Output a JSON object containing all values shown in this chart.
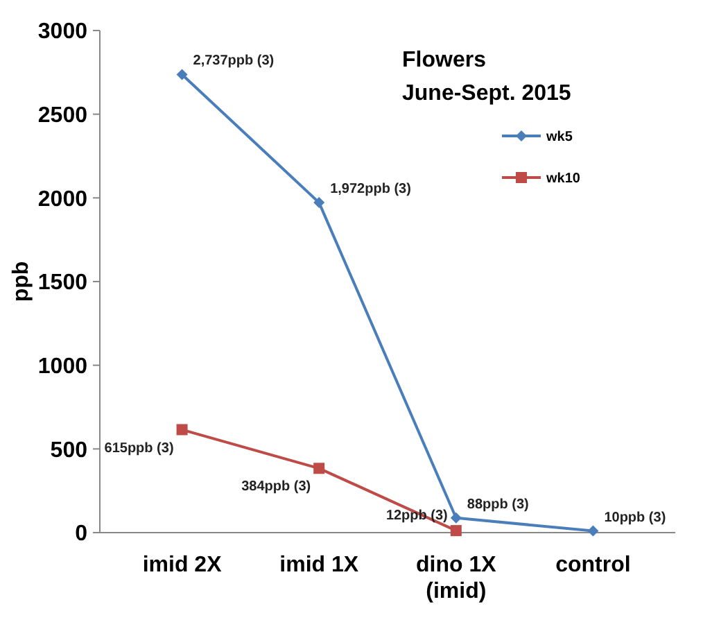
{
  "chart_data": {
    "type": "line",
    "title": "Flowers",
    "subtitle": "June-Sept. 2015",
    "ylabel": "ppb",
    "categories": [
      "imid 2X",
      "imid 1X",
      "dino 1X\n(imid)",
      "control"
    ],
    "ylim": [
      0,
      3000
    ],
    "yticks": [
      0,
      500,
      1000,
      1500,
      2000,
      2500,
      3000
    ],
    "grid": false,
    "legend": "top right",
    "series": [
      {
        "name": "wk5",
        "color": "#4a7ebb",
        "marker": "diamond",
        "values": [
          2737,
          1972,
          88,
          10
        ],
        "value_labels": [
          "2,737ppb (3)",
          "1,972ppb (3)",
          "88ppb (3)",
          "10ppb (3)"
        ]
      },
      {
        "name": "wk10",
        "color": "#be4b48",
        "marker": "square",
        "values": [
          615,
          384,
          12,
          null
        ],
        "value_labels": [
          "615ppb (3)",
          "384ppb (3)",
          "12ppb (3)",
          null
        ]
      }
    ]
  }
}
